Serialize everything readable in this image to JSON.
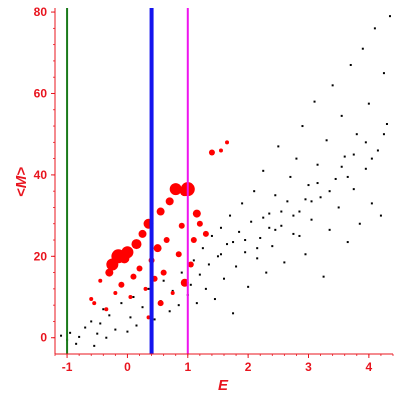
{
  "chart_data": {
    "type": "scatter",
    "title": "",
    "xlabel": "E",
    "ylabel": "<M>",
    "xlim": [
      -1.2,
      4.4
    ],
    "ylim": [
      -4,
      81
    ],
    "xticks": [
      -1,
      0,
      1,
      2,
      3,
      4
    ],
    "yticks": [
      0,
      20,
      40,
      60,
      80
    ],
    "grid": false,
    "colors": {
      "axis": "#e8141e",
      "background_points": "#000000",
      "highlight_points": "#ff0000",
      "line_green": "#1a7a1a",
      "line_blue": "#1414ee",
      "line_magenta": "#ee14ee"
    },
    "vertical_lines": [
      {
        "x": -1.0,
        "color": "#1a7a1a"
      },
      {
        "x": 0.4,
        "color": "#1414ee"
      },
      {
        "x": 1.0,
        "color": "#ee14ee"
      }
    ],
    "series": [
      {
        "points": [
          [
            -1.1,
            0.5
          ],
          [
            -1.0,
            -0.5
          ],
          [
            -0.95,
            1.2
          ],
          [
            -0.85,
            -1.5
          ],
          [
            -0.8,
            0.2
          ],
          [
            -0.7,
            2.5
          ],
          [
            -0.6,
            4.0
          ],
          [
            -0.55,
            -2.0
          ],
          [
            -0.5,
            1.0
          ],
          [
            -0.45,
            3.5
          ],
          [
            -0.4,
            7.0
          ],
          [
            -0.35,
            0.0
          ],
          [
            -0.3,
            5.5
          ],
          [
            -0.2,
            2.0
          ],
          [
            -0.1,
            8.5
          ],
          [
            0.0,
            1.5
          ],
          [
            0.05,
            5.0
          ],
          [
            0.1,
            10.0
          ],
          [
            0.15,
            3.0
          ],
          [
            0.25,
            7.5
          ],
          [
            0.35,
            12.0
          ],
          [
            0.45,
            4.5
          ],
          [
            0.55,
            9.0
          ],
          [
            0.6,
            14.0
          ],
          [
            0.7,
            6.5
          ],
          [
            0.75,
            11.5
          ],
          [
            0.85,
            8.0
          ],
          [
            0.9,
            16.0
          ],
          [
            1.0,
            10.5
          ],
          [
            1.05,
            13.0
          ],
          [
            1.1,
            19.0
          ],
          [
            1.15,
            8.5
          ],
          [
            1.2,
            15.5
          ],
          [
            1.25,
            22.0
          ],
          [
            1.3,
            12.0
          ],
          [
            1.35,
            18.0
          ],
          [
            1.4,
            25.0
          ],
          [
            1.45,
            9.5
          ],
          [
            1.5,
            20.0
          ],
          [
            1.55,
            27.0
          ],
          [
            1.6,
            14.5
          ],
          [
            1.65,
            23.0
          ],
          [
            1.7,
            30.0
          ],
          [
            1.75,
            6.0
          ],
          [
            1.8,
            17.5
          ],
          [
            1.85,
            26.0
          ],
          [
            1.9,
            33.0
          ],
          [
            1.95,
            21.0
          ],
          [
            2.0,
            12.5
          ],
          [
            2.05,
            28.5
          ],
          [
            2.1,
            36.0
          ],
          [
            2.15,
            19.5
          ],
          [
            2.2,
            24.5
          ],
          [
            2.25,
            41.0
          ],
          [
            2.3,
            16.0
          ],
          [
            2.35,
            30.5
          ],
          [
            2.4,
            22.5
          ],
          [
            2.45,
            35.0
          ],
          [
            2.5,
            47.0
          ],
          [
            2.55,
            27.5
          ],
          [
            2.6,
            18.5
          ],
          [
            2.65,
            33.5
          ],
          [
            2.7,
            39.5
          ],
          [
            2.75,
            25.5
          ],
          [
            2.8,
            44.0
          ],
          [
            2.85,
            31.0
          ],
          [
            2.9,
            52.0
          ],
          [
            2.95,
            20.5
          ],
          [
            3.0,
            37.5
          ],
          [
            3.05,
            29.0
          ],
          [
            3.1,
            58.0
          ],
          [
            3.15,
            42.5
          ],
          [
            3.2,
            34.5
          ],
          [
            3.25,
            15.0
          ],
          [
            3.3,
            48.5
          ],
          [
            3.35,
            26.5
          ],
          [
            3.4,
            62.0
          ],
          [
            3.45,
            39.0
          ],
          [
            3.5,
            32.0
          ],
          [
            3.55,
            54.5
          ],
          [
            3.6,
            44.5
          ],
          [
            3.65,
            23.5
          ],
          [
            3.7,
            67.0
          ],
          [
            3.75,
            36.5
          ],
          [
            3.8,
            50.0
          ],
          [
            3.85,
            28.0
          ],
          [
            3.9,
            71.0
          ],
          [
            3.95,
            41.5
          ],
          [
            4.0,
            57.5
          ],
          [
            4.05,
            33.0
          ],
          [
            4.1,
            76.0
          ],
          [
            4.15,
            46.0
          ],
          [
            4.2,
            30.0
          ],
          [
            4.25,
            65.0
          ],
          [
            4.3,
            52.5
          ],
          [
            4.35,
            79.0
          ],
          [
            1.95,
            24.0
          ],
          [
            2.35,
            27.0
          ],
          [
            2.75,
            30.0
          ],
          [
            3.15,
            38.0
          ],
          [
            3.55,
            42.0
          ],
          [
            3.95,
            48.0
          ],
          [
            2.55,
            31.0
          ],
          [
            3.35,
            36.0
          ],
          [
            2.15,
            22.0
          ],
          [
            2.95,
            34.0
          ],
          [
            3.75,
            45.0
          ],
          [
            4.25,
            50.0
          ],
          [
            1.55,
            20.5
          ],
          [
            1.75,
            23.5
          ],
          [
            2.45,
            26.5
          ],
          [
            3.05,
            33.5
          ],
          [
            3.65,
            39.5
          ],
          [
            4.05,
            44.0
          ],
          [
            2.25,
            29.5
          ],
          [
            2.85,
            25.0
          ]
        ]
      },
      {
        "points": [
          [
            -0.6,
            9.5,
            2
          ],
          [
            -0.55,
            8.5,
            2
          ],
          [
            -0.45,
            14.0,
            2
          ],
          [
            -0.35,
            7.0,
            2
          ],
          [
            -0.3,
            16.0,
            4
          ],
          [
            -0.25,
            18.0,
            6
          ],
          [
            -0.2,
            11.0,
            2
          ],
          [
            -0.15,
            20.0,
            7
          ],
          [
            -0.1,
            13.0,
            3
          ],
          [
            -0.05,
            19.5,
            5
          ],
          [
            0.0,
            21.0,
            6
          ],
          [
            0.05,
            10.0,
            2
          ],
          [
            0.1,
            15.0,
            3
          ],
          [
            0.15,
            23.0,
            5
          ],
          [
            0.2,
            17.0,
            3
          ],
          [
            0.25,
            25.5,
            4
          ],
          [
            0.3,
            12.0,
            2
          ],
          [
            0.35,
            28.0,
            5
          ],
          [
            0.4,
            19.0,
            3
          ],
          [
            0.45,
            14.5,
            3
          ],
          [
            0.5,
            22.0,
            4
          ],
          [
            0.55,
            31.0,
            4
          ],
          [
            0.6,
            16.0,
            3
          ],
          [
            0.65,
            24.0,
            3
          ],
          [
            0.7,
            33.5,
            4
          ],
          [
            0.75,
            11.0,
            2
          ],
          [
            0.8,
            36.5,
            6
          ],
          [
            0.85,
            20.5,
            3
          ],
          [
            0.9,
            27.5,
            3
          ],
          [
            0.95,
            36.0,
            5
          ],
          [
            1.0,
            36.5,
            7
          ],
          [
            1.05,
            18.0,
            3
          ],
          [
            1.1,
            24.0,
            3
          ],
          [
            1.15,
            30.5,
            4
          ],
          [
            1.2,
            28.0,
            3
          ],
          [
            1.3,
            25.5,
            3
          ],
          [
            1.4,
            45.5,
            3
          ],
          [
            1.55,
            46.0,
            2
          ],
          [
            1.65,
            48.0,
            2
          ],
          [
            0.35,
            5.0,
            2
          ],
          [
            0.55,
            8.5,
            3
          ],
          [
            0.95,
            13.5,
            4
          ]
        ]
      }
    ]
  }
}
